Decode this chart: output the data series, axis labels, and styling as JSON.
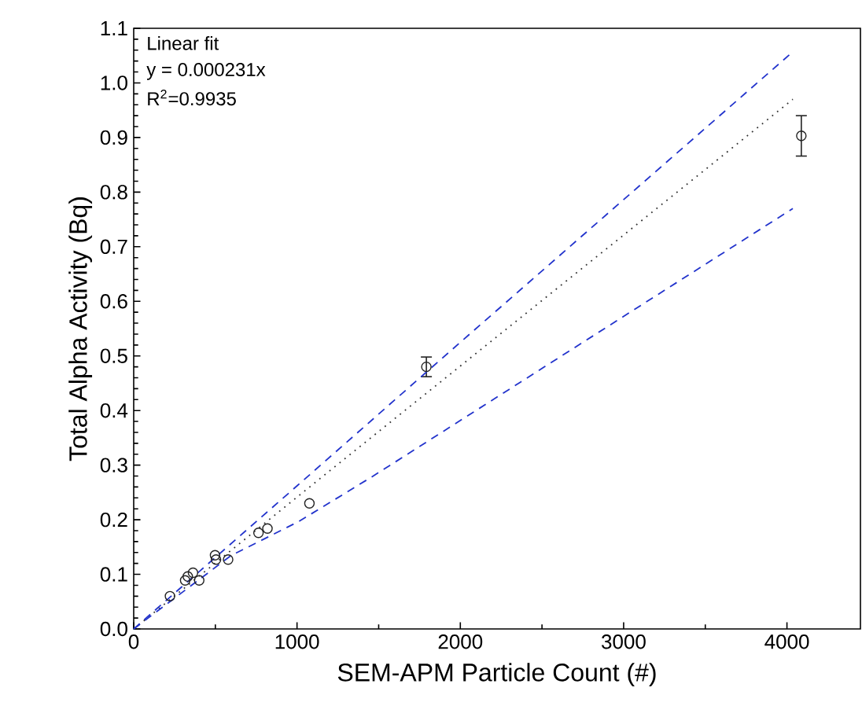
{
  "chart_data": {
    "type": "scatter",
    "xlabel": "SEM-APM Particle Count (#)",
    "ylabel": "Total Alpha Activity (Bq)",
    "xlim": [
      0,
      4450
    ],
    "xticks": [
      0,
      1000,
      2000,
      3000,
      4000
    ],
    "ylim": [
      0,
      1.1
    ],
    "yticks": [
      {
        "value": 0,
        "label": "0.0"
      },
      0.1,
      0.2,
      0.3,
      0.4,
      0.5,
      0.6,
      0.7,
      0.8,
      0.9,
      {
        "value": 1.0,
        "label": "1.0"
      },
      1.1
    ],
    "annotations": [
      "Linear fit",
      "y = 0.000231x",
      "R$^{2}$=0.9935"
    ],
    "series": [
      {
        "marker": "circle",
        "color": "#222222",
        "x": [
          222,
          315,
          331,
          363,
          401,
          498,
          504,
          578,
          764,
          819,
          1076,
          1792,
          4088
        ],
        "values": [
          0.06,
          0.089,
          0.096,
          0.103,
          0.089,
          0.135,
          0.127,
          0.127,
          0.176,
          0.184,
          0.23,
          0.48,
          0.903
        ],
        "errors": [
          null,
          null,
          null,
          null,
          null,
          null,
          null,
          null,
          null,
          null,
          null,
          0.018,
          0.037
        ]
      },
      {
        "type": "line",
        "line_style": "dotted",
        "marker": "none",
        "color": "#333333",
        "x": [
          0,
          1156,
          4036
        ],
        "values": [
          0,
          0.279,
          0.97
        ]
      },
      {
        "type": "line",
        "line_style": "dashed",
        "marker": "none",
        "color": "#2233cc",
        "x": [
          0,
          1000,
          2000,
          4036
        ],
        "values": [
          0,
          0.262,
          0.525,
          1.057
        ]
      },
      {
        "type": "line",
        "line_style": "dashed",
        "marker": "none",
        "color": "#2233cc",
        "x": [
          0,
          594,
          1012,
          1461,
          4036
        ],
        "values": [
          0,
          0.134,
          0.197,
          0.279,
          0.77
        ]
      }
    ]
  }
}
